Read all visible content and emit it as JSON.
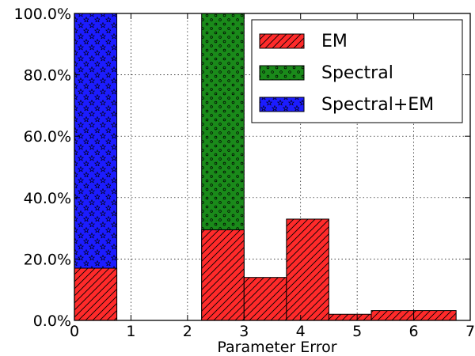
{
  "chart_data": {
    "type": "bar",
    "xlabel": "Parameter Error",
    "ylabel": "",
    "xlim": [
      0,
      7
    ],
    "ylim": [
      0,
      100
    ],
    "x_ticks": [
      "0",
      "1",
      "2",
      "3",
      "4",
      "5",
      "6",
      "7"
    ],
    "y_ticks": [
      "0.0%",
      "20.0%",
      "40.0%",
      "60.0%",
      "80.0%",
      "100.0%"
    ],
    "grid": true,
    "legend_position": "top-right",
    "series": [
      {
        "name": "EM",
        "color": "#ff2a2a",
        "hatch": "diagonal-lines",
        "bins": [
          {
            "x0": 0.0,
            "x1": 0.75,
            "value": 17
          },
          {
            "x0": 2.25,
            "x1": 3.0,
            "value": 29.5
          },
          {
            "x0": 3.0,
            "x1": 3.75,
            "value": 14
          },
          {
            "x0": 3.75,
            "x1": 4.5,
            "value": 33
          },
          {
            "x0": 4.5,
            "x1": 5.25,
            "value": 2
          },
          {
            "x0": 5.25,
            "x1": 6.0,
            "value": 3.2
          },
          {
            "x0": 6.0,
            "x1": 6.75,
            "value": 3.2
          }
        ]
      },
      {
        "name": "Spectral",
        "color": "#1a8a1a",
        "hatch": "dots",
        "bins": [
          {
            "x0": 2.25,
            "x1": 3.0,
            "value": 100
          }
        ]
      },
      {
        "name": "Spectral+EM",
        "color": "#1c1cff",
        "hatch": "stars",
        "bins": [
          {
            "x0": 0.0,
            "x1": 0.75,
            "value": 100
          }
        ]
      }
    ]
  }
}
